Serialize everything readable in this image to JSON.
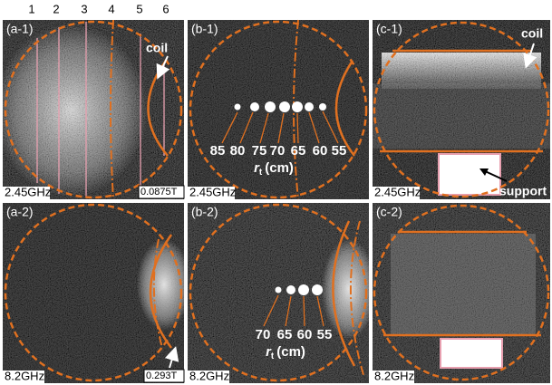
{
  "column_numbers": [
    1,
    2,
    3,
    4,
    5,
    6
  ],
  "panels": [
    {
      "label": "(a-1)",
      "frequency": "2.45GHz",
      "field": "0.0875T",
      "annotation": "coil"
    },
    {
      "label": "(b-1)",
      "frequency": "2.45GHz",
      "radii": [
        85,
        80,
        75,
        70,
        65,
        60,
        55
      ],
      "radius_label": {
        "symbol": "r",
        "subscript": "t",
        "unit": "(cm)"
      }
    },
    {
      "label": "(c-1)",
      "frequency": "2.45GHz",
      "annotation": "coil",
      "annotation2": "support"
    },
    {
      "label": "(a-2)",
      "frequency": "8.2GHz",
      "field": "0.293T"
    },
    {
      "label": "(b-2)",
      "frequency": "8.2GHz",
      "radii": [
        70,
        65,
        60,
        55
      ],
      "radius_label": {
        "symbol": "r",
        "subscript": "t",
        "unit": "(cm)"
      }
    },
    {
      "label": "(c-2)",
      "frequency": "8.2GHz"
    }
  ]
}
